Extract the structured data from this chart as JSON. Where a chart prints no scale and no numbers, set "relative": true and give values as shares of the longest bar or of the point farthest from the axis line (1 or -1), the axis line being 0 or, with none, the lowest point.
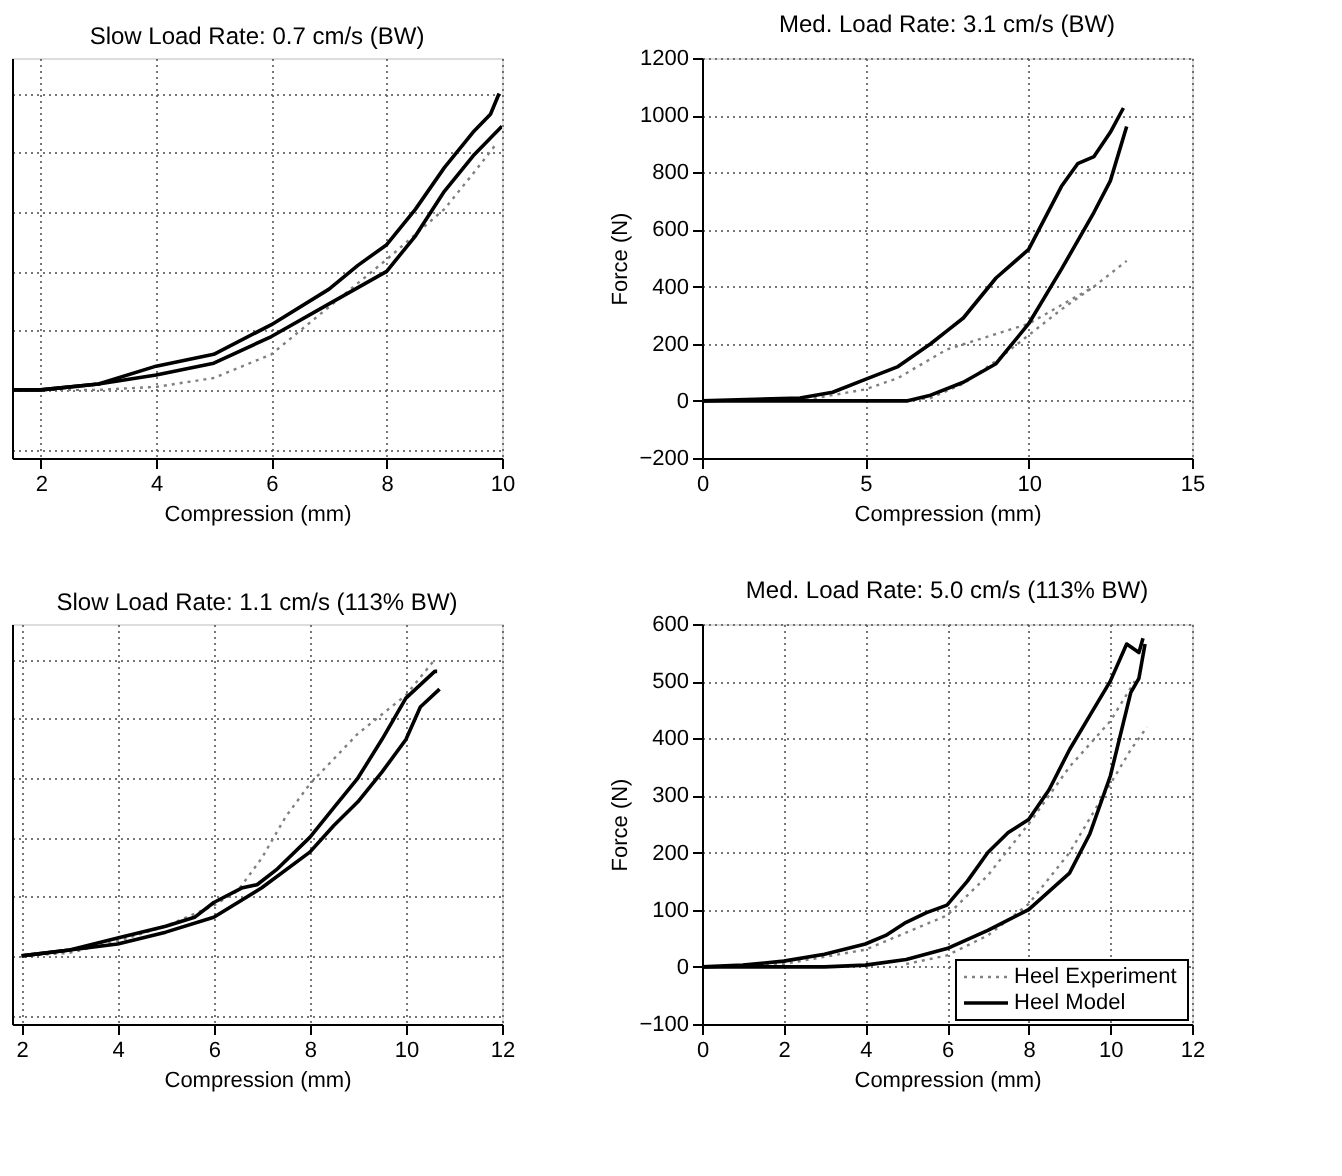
{
  "chart_data": [
    {
      "type": "line",
      "title": "Slow Load Rate: 0.7 cm/s (BW)",
      "xlabel": "Compression (mm)",
      "relative": true,
      "tick_labels": "x",
      "xlim": [
        1.5,
        10
      ],
      "xticks": [
        2,
        4,
        6,
        8,
        10
      ],
      "grid": true,
      "series": [
        {
          "color": "#808080",
          "line_style": "dotted",
          "x": [
            1.5,
            3,
            4,
            5,
            6,
            7,
            8,
            9,
            9.5,
            9.9
          ],
          "values": [
            0,
            0,
            0.01,
            0.04,
            0.12,
            0.28,
            0.44,
            0.61,
            0.73,
            0.83
          ]
        },
        {
          "color": "#000000",
          "line_style": "solid",
          "x": [
            1.5,
            2,
            3,
            4,
            5,
            6,
            7,
            7.5,
            8,
            8.5,
            9,
            9.5,
            9.8,
            9.95
          ],
          "values": [
            0,
            0,
            0.02,
            0.08,
            0.12,
            0.22,
            0.34,
            0.42,
            0.49,
            0.61,
            0.75,
            0.87,
            0.93,
            1
          ]
        },
        {
          "color": "#000000",
          "line_style": "solid",
          "x": [
            1.5,
            2,
            3,
            4,
            5,
            6,
            7,
            8,
            8.5,
            9,
            9.5,
            10
          ],
          "values": [
            0,
            0,
            0.02,
            0.05,
            0.09,
            0.18,
            0.29,
            0.4,
            0.52,
            0.67,
            0.79,
            0.89
          ]
        }
      ]
    },
    {
      "type": "line",
      "title": "Med. Load Rate: 3.1 cm/s (BW)",
      "xlabel": "Compression (mm)",
      "ylabel": "Force (N)",
      "xlim": [
        0,
        15
      ],
      "xticks": [
        0,
        5,
        10,
        15
      ],
      "ylim": [
        -200,
        1200
      ],
      "yticks": [
        -200,
        0,
        200,
        400,
        600,
        800,
        1000,
        1200
      ],
      "grid": true,
      "series": [
        {
          "color": "#808080",
          "line_style": "dotted",
          "x": [
            0,
            3,
            5,
            6,
            7.5,
            10,
            12,
            13
          ],
          "values": [
            0,
            0,
            40,
            80,
            180,
            270,
            400,
            490
          ]
        },
        {
          "color": "#000000",
          "line_style": "solid",
          "x": [
            0,
            3,
            4,
            5,
            6,
            7,
            7.5,
            8,
            9,
            10,
            11,
            11.5,
            12,
            12.5,
            12.9
          ],
          "values": [
            0,
            10,
            30,
            75,
            120,
            200,
            245,
            290,
            430,
            530,
            750,
            830,
            855,
            940,
            1025
          ]
        },
        {
          "color": "#808080",
          "line_style": "dotted",
          "x": [
            6,
            7,
            8,
            9,
            10,
            11,
            12
          ],
          "values": [
            0,
            10,
            60,
            140,
            230,
            320,
            400
          ]
        },
        {
          "color": "#000000",
          "line_style": "solid",
          "x": [
            0,
            6.3,
            7,
            8,
            9,
            10,
            11,
            12,
            12.5,
            13
          ],
          "values": [
            0,
            0,
            20,
            65,
            130,
            270,
            460,
            660,
            770,
            960
          ]
        }
      ]
    },
    {
      "type": "line",
      "title": "Slow Load Rate: 1.1 cm/s (113% BW)",
      "xlabel": "Compression (mm)",
      "relative": true,
      "tick_labels": "x",
      "xlim": [
        1.8,
        12
      ],
      "xticks": [
        2,
        4,
        6,
        8,
        10,
        12
      ],
      "grid": true,
      "series": [
        {
          "color": "#808080",
          "line_style": "dotted",
          "x": [
            2,
            3,
            4,
            5,
            6,
            6.5,
            7,
            7.5,
            8,
            9,
            10,
            10.6
          ],
          "values": [
            0,
            0.01,
            0.05,
            0.1,
            0.17,
            0.22,
            0.33,
            0.47,
            0.58,
            0.75,
            0.88,
            1
          ]
        },
        {
          "color": "#000000",
          "line_style": "solid",
          "x": [
            2,
            3,
            4,
            5,
            5.6,
            6,
            6.6,
            6.9,
            7.3,
            8,
            8.5,
            9,
            9.5,
            10,
            10.6,
            10.65
          ],
          "values": [
            0,
            0.02,
            0.06,
            0.1,
            0.13,
            0.18,
            0.23,
            0.24,
            0.29,
            0.4,
            0.5,
            0.6,
            0.73,
            0.87,
            0.96,
            0.96
          ]
        },
        {
          "color": "#000000",
          "line_style": "solid",
          "x": [
            2,
            3,
            4,
            5,
            6,
            7,
            8,
            8.5,
            9,
            9.5,
            10,
            10.3,
            10.7
          ],
          "values": [
            0,
            0.02,
            0.04,
            0.08,
            0.13,
            0.23,
            0.35,
            0.44,
            0.52,
            0.62,
            0.73,
            0.84,
            0.9
          ]
        }
      ]
    },
    {
      "type": "line",
      "title": "Med. Load Rate: 5.0 cm/s (113% BW)",
      "xlabel": "Compression (mm)",
      "ylabel": "Force (N)",
      "xlim": [
        0,
        12
      ],
      "xticks": [
        0,
        2,
        4,
        6,
        8,
        10,
        12
      ],
      "ylim": [
        -100,
        600
      ],
      "yticks": [
        -100,
        0,
        100,
        200,
        300,
        400,
        500,
        600
      ],
      "grid": true,
      "legend": "bottom right",
      "series": [
        {
          "name": "Heel Experiment",
          "color": "#808080",
          "line_style": "dotted",
          "x": [
            0,
            2,
            4,
            5,
            6,
            7,
            8,
            9,
            10,
            10.6
          ],
          "values": [
            0,
            5,
            30,
            60,
            90,
            160,
            250,
            350,
            430,
            500
          ]
        },
        {
          "name": "Heel Model",
          "color": "#000000",
          "line_style": "solid",
          "x": [
            0,
            1,
            2,
            3,
            4,
            4.5,
            5,
            5.5,
            6,
            6.5,
            7,
            7.5,
            8,
            8.5,
            9,
            9.5,
            10,
            10.4,
            10.7,
            10.8
          ],
          "values": [
            0,
            3,
            10,
            22,
            40,
            55,
            78,
            95,
            108,
            150,
            200,
            235,
            258,
            310,
            380,
            440,
            500,
            565,
            550,
            575
          ]
        },
        {
          "color": "#808080",
          "line_style": "dotted",
          "x": [
            5,
            6,
            7,
            8,
            9,
            10,
            10.5,
            10.9
          ],
          "values": [
            5,
            20,
            55,
            110,
            200,
            320,
            380,
            420
          ]
        },
        {
          "color": "#000000",
          "line_style": "solid",
          "x": [
            0,
            3,
            4,
            5,
            6,
            7,
            8,
            9,
            9.5,
            10,
            10.5,
            10.7,
            10.85
          ],
          "values": [
            0,
            0,
            3,
            13,
            32,
            64,
            100,
            164,
            233,
            334,
            480,
            505,
            565
          ]
        }
      ]
    }
  ]
}
